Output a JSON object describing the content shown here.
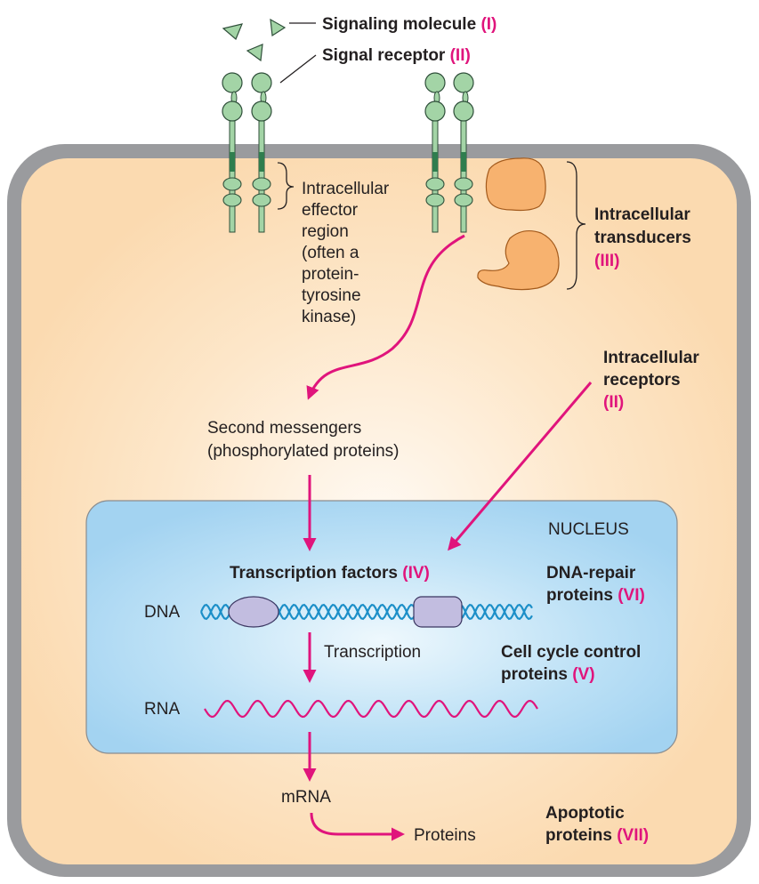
{
  "labels": {
    "signaling_molecule": "Signaling molecule",
    "signaling_molecule_num": "(I)",
    "signal_receptor": "Signal receptor",
    "signal_receptor_num": "(II)",
    "effector_region": [
      "Intracellular",
      "effector",
      "region",
      "(often a",
      "protein-",
      "tyrosine",
      "kinase)"
    ],
    "intracellular_transducers": [
      "Intracellular",
      "transducers"
    ],
    "intracellular_transducers_num": "(III)",
    "intracellular_receptors": [
      "Intracellular",
      "receptors"
    ],
    "intracellular_receptors_num": "(II)",
    "second_messengers": [
      "Second messengers",
      "(phosphorylated proteins)"
    ],
    "nucleus": "NUCLEUS",
    "transcription_factors": "Transcription factors",
    "transcription_factors_num": "(IV)",
    "dna_repair": [
      "DNA-repair",
      "proteins"
    ],
    "dna_repair_num": "(VI)",
    "dna": "DNA",
    "transcription": "Transcription",
    "cell_cycle": [
      "Cell cycle control",
      "proteins"
    ],
    "cell_cycle_num": "(V)",
    "rna": "RNA",
    "mrna": "mRNA",
    "proteins": "Proteins",
    "apoptotic": [
      "Apoptotic",
      "proteins"
    ],
    "apoptotic_num": "(VII)"
  },
  "colors": {
    "cell_fill": "#fbdcb1",
    "cell_border": "#9a9b9e",
    "nucleus_fill": "#a9d7f3",
    "receptor_green": "#a3d4a6",
    "receptor_dark": "#2f7d4e",
    "transducer_orange": "#f7b26f",
    "arrow_magenta": "#e0147c",
    "dna_blue": "#1c8fc8",
    "dna_protein": "#c2bde0"
  }
}
